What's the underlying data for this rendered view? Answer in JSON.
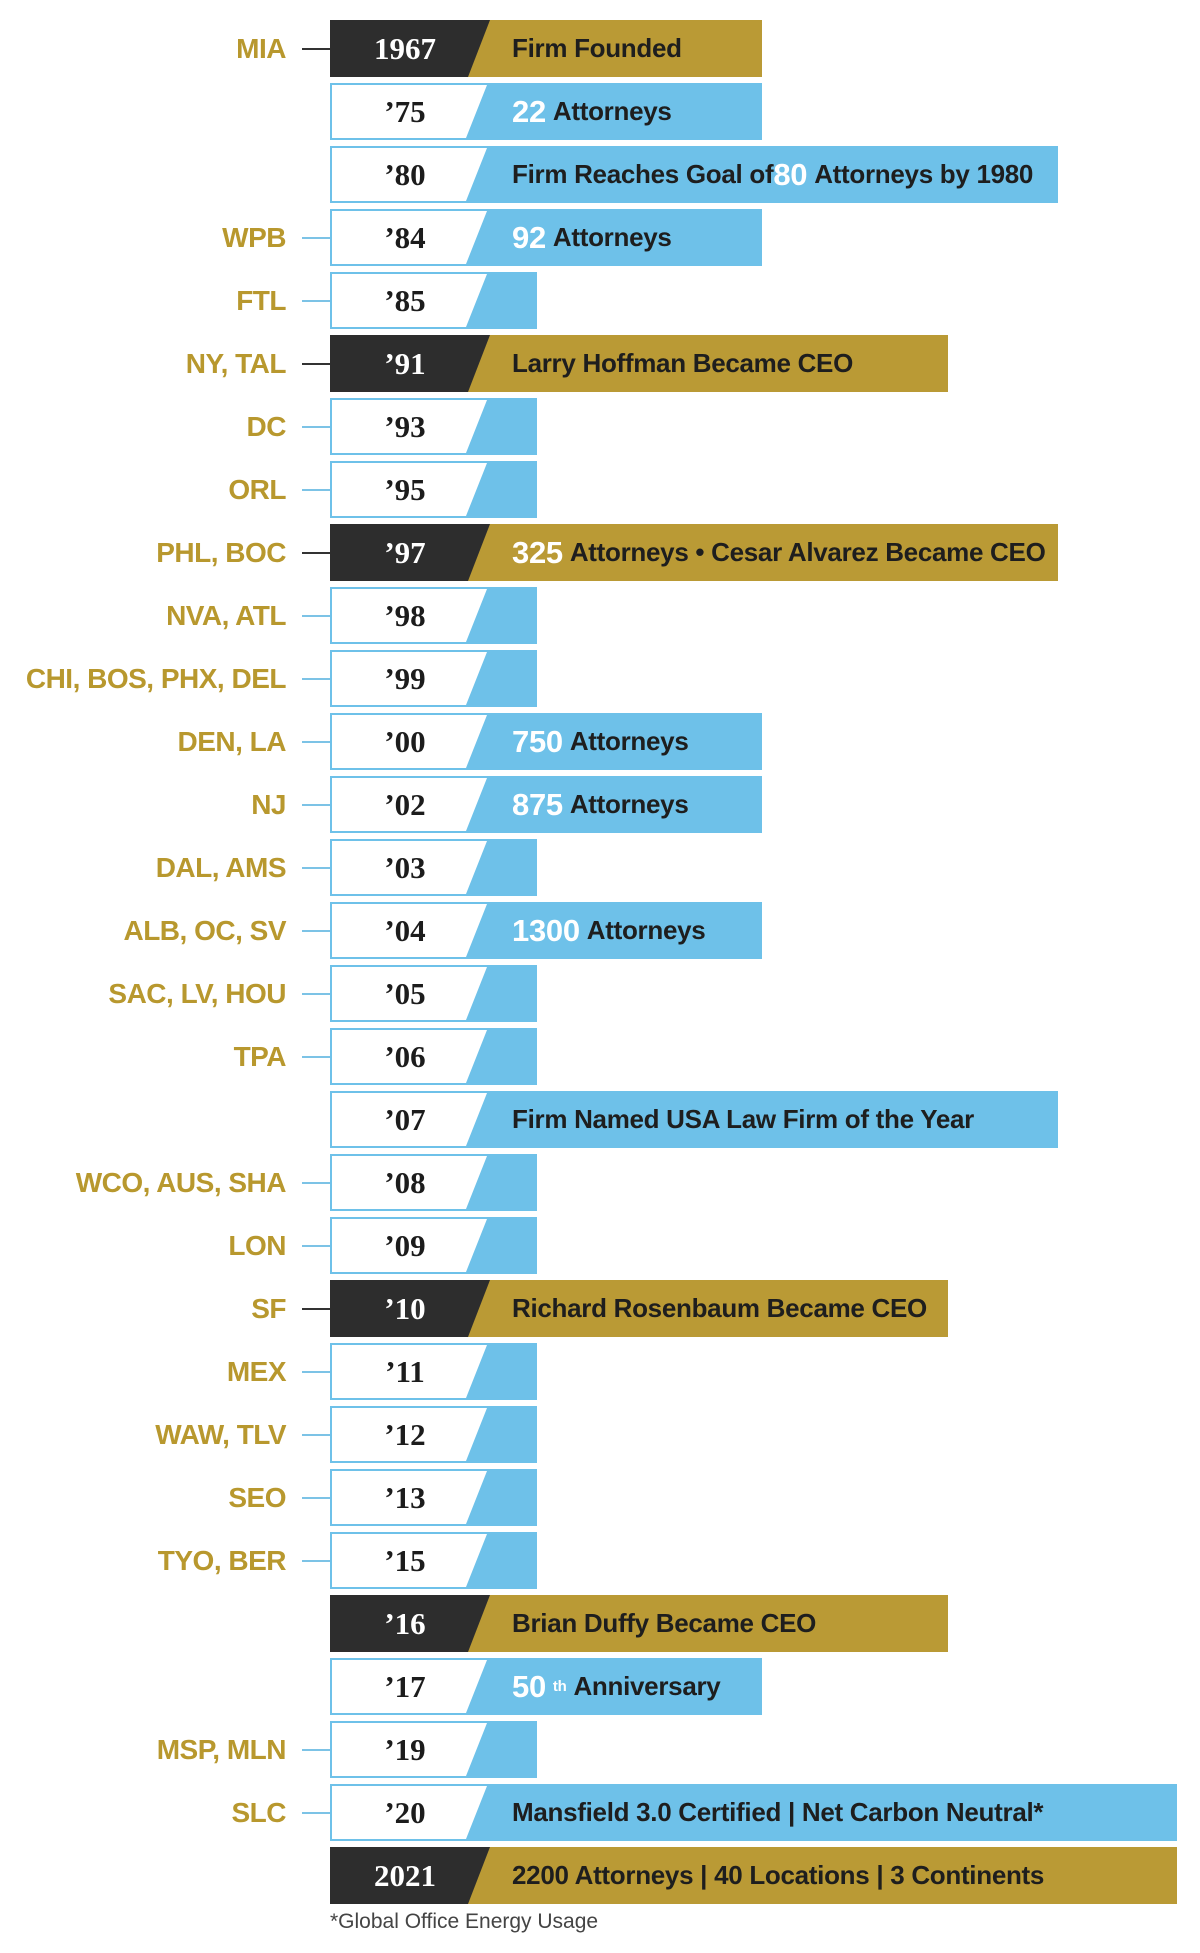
{
  "rows": [
    {
      "year": "1967",
      "locations": "MIA",
      "style": "dark",
      "event": {
        "color": "gold",
        "width": 295,
        "parts": [
          {
            "t": "txt",
            "v": "Firm Founded"
          }
        ]
      }
    },
    {
      "year": "’75",
      "locations": "",
      "style": "light",
      "event": {
        "color": "blue",
        "width": 295,
        "parts": [
          {
            "t": "num",
            "v": "22"
          },
          {
            "t": "txt",
            "v": "Attorneys"
          }
        ]
      }
    },
    {
      "year": "’80",
      "locations": "",
      "style": "light",
      "event": {
        "color": "blue",
        "width": 591,
        "parts": [
          {
            "t": "txt",
            "v": "Firm Reaches Goal of "
          },
          {
            "t": "num",
            "v": "80"
          },
          {
            "t": "txt",
            "v": "Attorneys by 1980"
          }
        ]
      }
    },
    {
      "year": "’84",
      "locations": "WPB",
      "style": "light",
      "event": {
        "color": "blue",
        "width": 295,
        "parts": [
          {
            "t": "num",
            "v": "92"
          },
          {
            "t": "txt",
            "v": "Attorneys"
          }
        ]
      }
    },
    {
      "year": "’85",
      "locations": "FTL",
      "style": "light",
      "event": null
    },
    {
      "year": "’91",
      "locations": "NY, TAL",
      "style": "dark",
      "event": {
        "color": "gold",
        "width": 481,
        "parts": [
          {
            "t": "txt",
            "v": "Larry Hoffman Became CEO"
          }
        ]
      }
    },
    {
      "year": "’93",
      "locations": "DC",
      "style": "light",
      "event": null
    },
    {
      "year": "’95",
      "locations": "ORL",
      "style": "light",
      "event": null
    },
    {
      "year": "’97",
      "locations": "PHL, BOC",
      "style": "dark",
      "event": {
        "color": "gold",
        "width": 591,
        "parts": [
          {
            "t": "num",
            "v": "325"
          },
          {
            "t": "txt",
            "v": "Attorneys • Cesar Alvarez Became CEO"
          }
        ]
      }
    },
    {
      "year": "’98",
      "locations": "NVA, ATL",
      "style": "light",
      "event": null
    },
    {
      "year": "’99",
      "locations": "CHI, BOS, PHX, DEL",
      "style": "light",
      "event": null
    },
    {
      "year": "’00",
      "locations": "DEN, LA",
      "style": "light",
      "event": {
        "color": "blue",
        "width": 295,
        "parts": [
          {
            "t": "num",
            "v": "750"
          },
          {
            "t": "txt",
            "v": "Attorneys"
          }
        ]
      }
    },
    {
      "year": "’02",
      "locations": "NJ",
      "style": "light",
      "event": {
        "color": "blue",
        "width": 295,
        "parts": [
          {
            "t": "num",
            "v": "875"
          },
          {
            "t": "txt",
            "v": "Attorneys"
          }
        ]
      }
    },
    {
      "year": "’03",
      "locations": "DAL, AMS",
      "style": "light",
      "event": null
    },
    {
      "year": "’04",
      "locations": "ALB, OC, SV",
      "style": "light",
      "event": {
        "color": "blue",
        "width": 295,
        "parts": [
          {
            "t": "num",
            "v": "1300"
          },
          {
            "t": "txt",
            "v": "Attorneys"
          }
        ]
      }
    },
    {
      "year": "’05",
      "locations": "SAC, LV, HOU",
      "style": "light",
      "event": null
    },
    {
      "year": "’06",
      "locations": "TPA",
      "style": "light",
      "event": null
    },
    {
      "year": "’07",
      "locations": "",
      "style": "light",
      "event": {
        "color": "blue",
        "width": 591,
        "parts": [
          {
            "t": "txt",
            "v": "Firm Named USA Law Firm of the Year"
          }
        ]
      }
    },
    {
      "year": "’08",
      "locations": "WCO, AUS, SHA",
      "style": "light",
      "event": null
    },
    {
      "year": "’09",
      "locations": "LON",
      "style": "light",
      "event": null
    },
    {
      "year": "’10",
      "locations": "SF",
      "style": "dark",
      "event": {
        "color": "gold",
        "width": 481,
        "parts": [
          {
            "t": "txt",
            "v": "Richard Rosenbaum Became CEO"
          }
        ]
      }
    },
    {
      "year": "’11",
      "locations": "MEX",
      "style": "light",
      "event": null
    },
    {
      "year": "’12",
      "locations": "WAW, TLV",
      "style": "light",
      "event": null
    },
    {
      "year": "’13",
      "locations": "SEO",
      "style": "light",
      "event": null
    },
    {
      "year": "’15",
      "locations": "TYO, BER",
      "style": "light",
      "event": null
    },
    {
      "year": "’16",
      "locations": "",
      "style": "dark",
      "event": {
        "color": "gold",
        "width": 481,
        "parts": [
          {
            "t": "txt",
            "v": "Brian Duffy Became CEO"
          }
        ]
      }
    },
    {
      "year": "’17",
      "locations": "",
      "style": "light",
      "event": {
        "color": "blue",
        "width": 295,
        "parts": [
          {
            "t": "num",
            "v": "50"
          },
          {
            "t": "sup",
            "v": "th"
          },
          {
            "t": "txt",
            "v": "Anniversary"
          }
        ]
      }
    },
    {
      "year": "’19",
      "locations": "MSP, MLN",
      "style": "light",
      "event": null
    },
    {
      "year": "’20",
      "locations": "SLC",
      "style": "light",
      "event": {
        "color": "blue",
        "width": 710,
        "parts": [
          {
            "t": "txt",
            "v": "Mansfield 3.0 Certified | Net Carbon Neutral*"
          }
        ]
      }
    },
    {
      "year": "2021",
      "locations": "",
      "style": "dark",
      "event": {
        "color": "gold",
        "width": 710,
        "parts": [
          {
            "t": "txt",
            "v": "2200 Attorneys | 40 Locations | 3 Continents"
          }
        ]
      }
    }
  ],
  "footnote": "*Global Office Energy Usage"
}
